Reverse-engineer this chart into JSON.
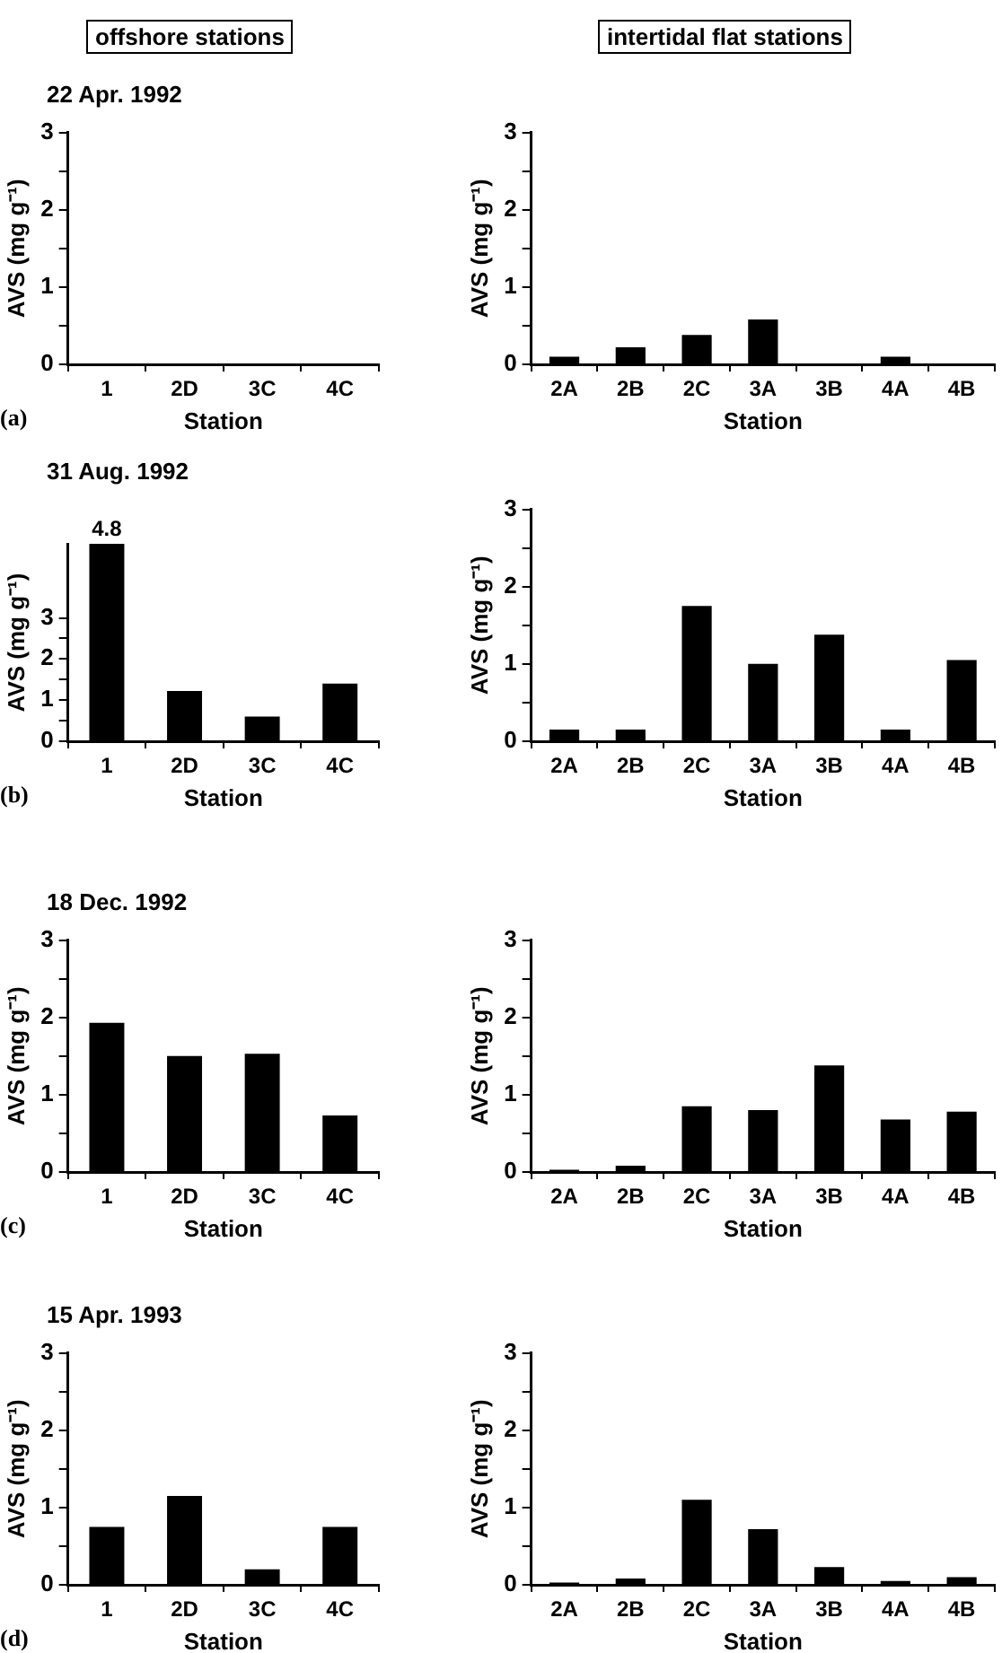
{
  "chart_data": [
    {
      "type": "bar",
      "title": "offshore stations",
      "subtitle": "22 Apr. 1992",
      "xlabel": "Station",
      "ylabel": "AVS (mg g⁻¹)",
      "categories": [
        "1",
        "2D",
        "3C",
        "4C"
      ],
      "values": [
        0,
        0,
        0,
        0
      ],
      "color": "#000000",
      "ylim": [
        0,
        3
      ],
      "yticks": [
        0,
        {
          "value": 0.5,
          "label": null
        },
        1,
        {
          "value": 1.5,
          "label": null
        },
        2,
        {
          "value": 2.5,
          "label": null
        },
        3
      ],
      "annotations": [
        "(a)"
      ]
    },
    {
      "type": "bar",
      "title": "intertidal flat stations",
      "xlabel": "Station",
      "ylabel": "AVS (mg g⁻¹)",
      "categories": [
        "2A",
        "2B",
        "2C",
        "3A",
        "3B",
        "4A",
        "4B"
      ],
      "values": [
        0.1,
        0.22,
        0.38,
        0.58,
        0,
        0.1,
        0
      ],
      "color": "#000000",
      "ylim": [
        0,
        3
      ],
      "yticks": [
        0,
        {
          "value": 0.5,
          "label": null
        },
        1,
        {
          "value": 1.5,
          "label": null
        },
        2,
        {
          "value": 2.5,
          "label": null
        },
        3
      ]
    },
    {
      "type": "bar",
      "subtitle": "31 Aug. 1992",
      "xlabel": "Station",
      "ylabel": "AVS (mg g⁻¹)",
      "categories": [
        "1",
        "2D",
        "3C",
        "4C"
      ],
      "values": [
        4.8,
        1.22,
        0.6,
        1.4
      ],
      "value_labels": [
        "4.8",
        null,
        null,
        null
      ],
      "color": "#000000",
      "ylim": [
        0,
        4.8
      ],
      "yticks": [
        0,
        {
          "value": 0.5,
          "label": null
        },
        1,
        {
          "value": 1.5,
          "label": null
        },
        2,
        {
          "value": 2.5,
          "label": null
        },
        3
      ],
      "annotations": [
        "(b)"
      ]
    },
    {
      "type": "bar",
      "xlabel": "Station",
      "ylabel": "AVS (mg g⁻¹)",
      "categories": [
        "2A",
        "2B",
        "2C",
        "3A",
        "3B",
        "4A",
        "4B"
      ],
      "values": [
        0.15,
        0.15,
        1.75,
        1.0,
        1.38,
        0.15,
        1.05
      ],
      "color": "#000000",
      "ylim": [
        0,
        3
      ],
      "yticks": [
        0,
        {
          "value": 0.5,
          "label": null
        },
        1,
        {
          "value": 1.5,
          "label": null
        },
        2,
        {
          "value": 2.5,
          "label": null
        },
        3
      ]
    },
    {
      "type": "bar",
      "subtitle": "18 Dec. 1992",
      "xlabel": "Station",
      "ylabel": "AVS (mg g⁻¹)",
      "categories": [
        "1",
        "2D",
        "3C",
        "4C"
      ],
      "values": [
        1.93,
        1.5,
        1.53,
        0.73
      ],
      "color": "#000000",
      "ylim": [
        0,
        3
      ],
      "yticks": [
        0,
        {
          "value": 0.5,
          "label": null
        },
        1,
        {
          "value": 1.5,
          "label": null
        },
        2,
        {
          "value": 2.5,
          "label": null
        },
        3
      ],
      "annotations": [
        "(c)"
      ]
    },
    {
      "type": "bar",
      "xlabel": "Station",
      "ylabel": "AVS (mg g⁻¹)",
      "categories": [
        "2A",
        "2B",
        "2C",
        "3A",
        "3B",
        "4A",
        "4B"
      ],
      "values": [
        0.03,
        0.08,
        0.85,
        0.8,
        1.38,
        0.68,
        0.78
      ],
      "color": "#000000",
      "ylim": [
        0,
        3
      ],
      "yticks": [
        0,
        {
          "value": 0.5,
          "label": null
        },
        1,
        {
          "value": 1.5,
          "label": null
        },
        2,
        {
          "value": 2.5,
          "label": null
        },
        3
      ]
    },
    {
      "type": "bar",
      "subtitle": "15 Apr. 1993",
      "xlabel": "Station",
      "ylabel": "AVS (mg g⁻¹)",
      "categories": [
        "1",
        "2D",
        "3C",
        "4C"
      ],
      "values": [
        0.75,
        1.15,
        0.2,
        0.75
      ],
      "color": "#000000",
      "ylim": [
        0,
        3
      ],
      "yticks": [
        0,
        {
          "value": 0.5,
          "label": null
        },
        1,
        {
          "value": 1.5,
          "label": null
        },
        2,
        {
          "value": 2.5,
          "label": null
        },
        3
      ],
      "annotations": [
        "(d)"
      ]
    },
    {
      "type": "bar",
      "xlabel": "Station",
      "ylabel": "AVS (mg g⁻¹)",
      "categories": [
        "2A",
        "2B",
        "2C",
        "3A",
        "3B",
        "4A",
        "4B"
      ],
      "values": [
        0.03,
        0.08,
        1.1,
        0.72,
        0.23,
        0.05,
        0.1
      ],
      "color": "#000000",
      "ylim": [
        0,
        3
      ],
      "yticks": [
        0,
        {
          "value": 0.5,
          "label": null
        },
        1,
        {
          "value": 1.5,
          "label": null
        },
        2,
        {
          "value": 2.5,
          "label": null
        },
        3
      ]
    }
  ]
}
